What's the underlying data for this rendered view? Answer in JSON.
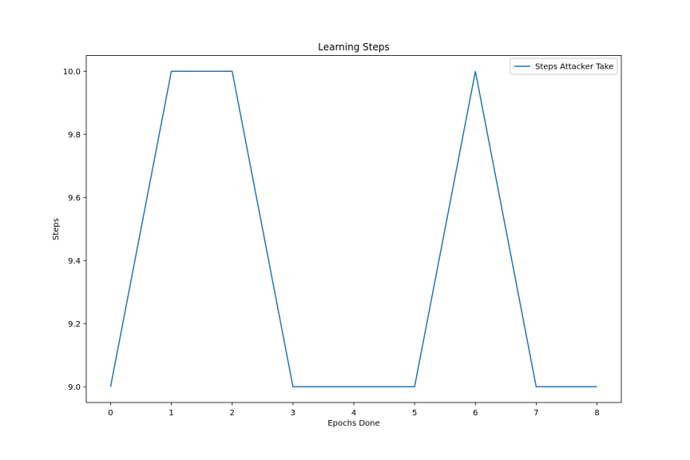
{
  "chart_data": {
    "type": "line",
    "title": "Learning Steps",
    "xlabel": "Epochs Done",
    "ylabel": "Steps",
    "x": [
      0,
      1,
      2,
      3,
      4,
      5,
      6,
      7,
      8
    ],
    "series": [
      {
        "name": "Steps Attacker Take",
        "values": [
          9.0,
          10.0,
          10.0,
          9.0,
          9.0,
          9.0,
          10.0,
          9.0,
          9.0
        ],
        "color": "#1f77b4"
      }
    ],
    "xlim": [
      -0.4,
      8.4
    ],
    "ylim": [
      8.95,
      10.05
    ],
    "xticks": [
      0,
      1,
      2,
      3,
      4,
      5,
      6,
      7,
      8
    ],
    "xtick_labels": [
      "0",
      "1",
      "2",
      "3",
      "4",
      "5",
      "6",
      "7",
      "8"
    ],
    "yticks": [
      9.0,
      9.2,
      9.4,
      9.6,
      9.8,
      10.0
    ],
    "ytick_labels": [
      "9.0",
      "9.2",
      "9.4",
      "9.6",
      "9.8",
      "10.0"
    ],
    "grid": false,
    "legend_position": "top-right"
  }
}
